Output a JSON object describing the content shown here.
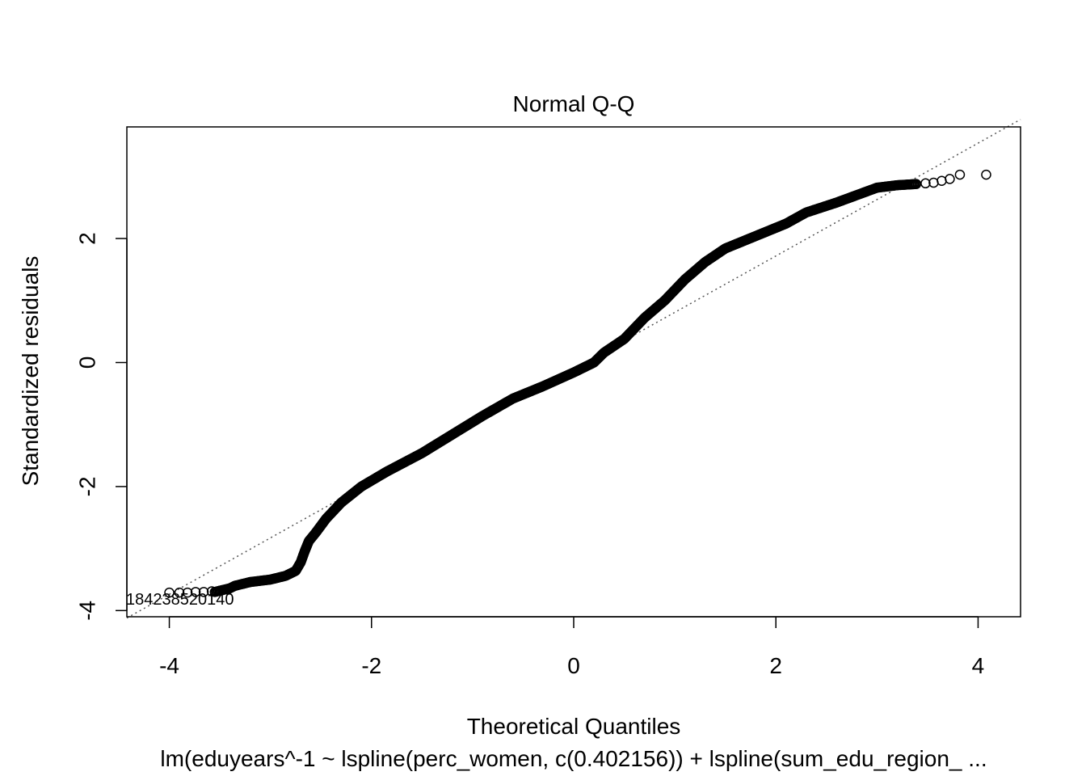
{
  "chart_data": {
    "type": "scatter",
    "title": "Normal Q-Q",
    "xlabel": "Theoretical Quantiles",
    "ylabel": "Standardized residuals",
    "subtitle": "lm(eduyears^-1 ~ lspline(perc_women, c(0.402156)) + lspline(sum_edu_region_ ...",
    "xlim": [
      -4.42,
      4.42
    ],
    "ylim": [
      -4.1,
      3.8
    ],
    "x_ticks": [
      -4,
      -2,
      0,
      2,
      4
    ],
    "y_ticks": [
      -4,
      -2,
      0,
      2
    ],
    "reference_line": {
      "x": [
        -4.42,
        4.42
      ],
      "y": [
        -4.12,
        3.92
      ],
      "style": "dotted"
    },
    "curve_points": [
      [
        -3.55,
        -3.7
      ],
      [
        -3.45,
        -3.66
      ],
      [
        -3.4,
        -3.64
      ],
      [
        -3.35,
        -3.6
      ],
      [
        -3.2,
        -3.54
      ],
      [
        -3.0,
        -3.5
      ],
      [
        -2.85,
        -3.44
      ],
      [
        -2.75,
        -3.36
      ],
      [
        -2.7,
        -3.22
      ],
      [
        -2.66,
        -3.04
      ],
      [
        -2.62,
        -2.88
      ],
      [
        -2.55,
        -2.74
      ],
      [
        -2.45,
        -2.52
      ],
      [
        -2.3,
        -2.26
      ],
      [
        -2.1,
        -2.0
      ],
      [
        -1.85,
        -1.76
      ],
      [
        -1.5,
        -1.46
      ],
      [
        -1.2,
        -1.16
      ],
      [
        -0.9,
        -0.86
      ],
      [
        -0.6,
        -0.58
      ],
      [
        -0.3,
        -0.38
      ],
      [
        0.0,
        -0.16
      ],
      [
        0.2,
        0.0
      ],
      [
        0.3,
        0.16
      ],
      [
        0.5,
        0.38
      ],
      [
        0.7,
        0.72
      ],
      [
        0.9,
        1.0
      ],
      [
        1.1,
        1.34
      ],
      [
        1.3,
        1.62
      ],
      [
        1.5,
        1.84
      ],
      [
        1.8,
        2.04
      ],
      [
        2.1,
        2.24
      ],
      [
        2.3,
        2.42
      ],
      [
        2.6,
        2.58
      ],
      [
        2.8,
        2.7
      ],
      [
        3.0,
        2.82
      ],
      [
        3.2,
        2.86
      ],
      [
        3.4,
        2.88
      ]
    ],
    "tail_points_high": [
      [
        3.48,
        2.89
      ],
      [
        3.56,
        2.9
      ],
      [
        3.64,
        2.93
      ],
      [
        3.72,
        2.96
      ],
      [
        3.82,
        3.03
      ],
      [
        4.08,
        3.03
      ]
    ],
    "tail_points_low": [
      [
        -3.42,
        -3.66
      ],
      [
        -3.5,
        -3.68
      ],
      [
        -3.58,
        -3.69
      ],
      [
        -3.66,
        -3.7
      ],
      [
        -3.74,
        -3.7
      ],
      [
        -3.82,
        -3.71
      ],
      [
        -3.9,
        -3.71
      ],
      [
        -4.0,
        -3.71
      ]
    ],
    "outlier_label_text": "184238520140"
  }
}
